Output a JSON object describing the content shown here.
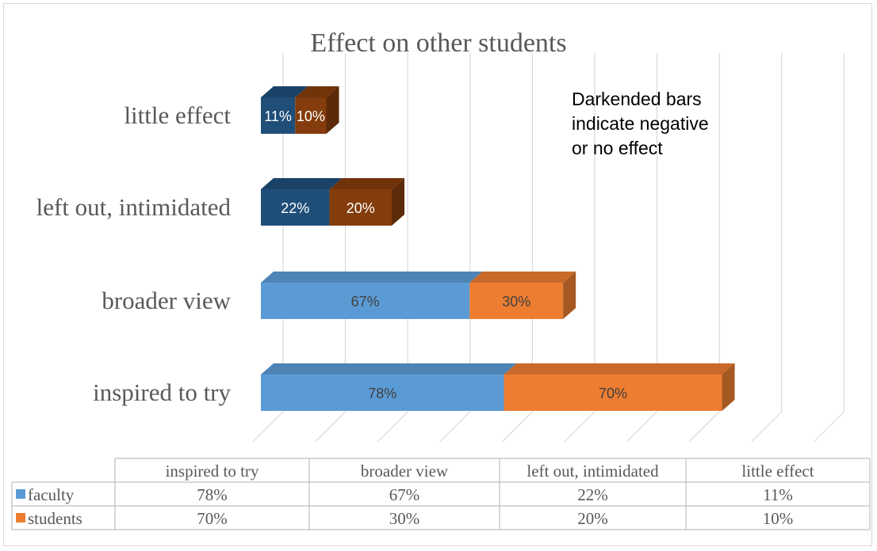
{
  "chart_data": {
    "type": "bar",
    "orientation": "horizontal",
    "stacked": true,
    "style": "3d",
    "title": "Effect on other students",
    "annotation": "Darkended bars indicate negative or no effect",
    "categories": [
      "inspired to try",
      "broader view",
      "left out, intimidated",
      "little effect"
    ],
    "negative_categories": [
      "left out, intimidated",
      "little effect"
    ],
    "series": [
      {
        "name": "faculty",
        "values": [
          78,
          67,
          22,
          11
        ],
        "labels": [
          "78%",
          "67%",
          "22%",
          "11%"
        ],
        "color": "#5b9bd5",
        "dark_color": "#1f4e79"
      },
      {
        "name": "students",
        "values": [
          70,
          30,
          20,
          10
        ],
        "labels": [
          "70%",
          "30%",
          "20%",
          "10%"
        ],
        "color": "#ed7d31",
        "dark_color": "#843c0c"
      }
    ],
    "xlim": [
      0,
      170
    ],
    "grid": true,
    "legend": "data-table",
    "data_table": {
      "headers": [
        "inspired to try",
        "broader view",
        "left out, intimidated",
        "little effect"
      ],
      "rows": [
        {
          "series": "faculty",
          "cells": [
            "78%",
            "67%",
            "22%",
            "11%"
          ]
        },
        {
          "series": "students",
          "cells": [
            "70%",
            "30%",
            "20%",
            "10%"
          ]
        }
      ]
    }
  }
}
